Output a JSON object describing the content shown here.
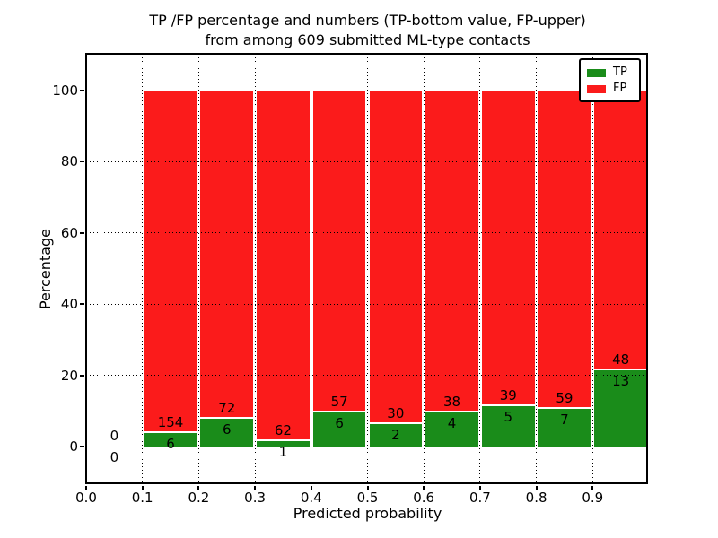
{
  "chart_data": {
    "type": "bar",
    "stacked": true,
    "normalized_to_pct": 100,
    "title_line1": "TP /FP percentage and numbers (TP-bottom value, FP-upper)",
    "title_line2": "from among 609 submitted ML-type contacts",
    "xlabel": "Predicted probability",
    "ylabel": "Percentage",
    "x_tick_labels": [
      "0.0",
      "0.1",
      "0.2",
      "0.3",
      "0.4",
      "0.5",
      "0.6",
      "0.7",
      "0.8",
      "0.9"
    ],
    "x_tick_values": [
      0.0,
      0.1,
      0.2,
      0.3,
      0.4,
      0.5,
      0.6,
      0.7,
      0.8,
      0.9
    ],
    "y_tick_labels": [
      "0",
      "20",
      "40",
      "60",
      "80",
      "100"
    ],
    "y_tick_values": [
      0,
      20,
      40,
      60,
      80,
      100
    ],
    "xlim": [
      0.0,
      1.0
    ],
    "ylim": [
      -10.6,
      110
    ],
    "bin_width": 0.1,
    "grid_style": "dotted",
    "legend_position": "upper right",
    "bins_x_start": [
      0.0,
      0.1,
      0.2,
      0.3,
      0.4,
      0.5,
      0.6,
      0.7,
      0.8,
      0.9
    ],
    "series": [
      {
        "name": "TP",
        "color": "#1a8c1a",
        "counts": [
          0,
          6,
          6,
          1,
          6,
          2,
          4,
          5,
          7,
          13
        ]
      },
      {
        "name": "FP",
        "color": "#fb1b1b",
        "counts": [
          0,
          154,
          72,
          62,
          57,
          30,
          38,
          39,
          59,
          48
        ]
      }
    ],
    "tp_pct_per_bin": [
      0,
      3.75,
      7.69,
      1.59,
      9.52,
      6.25,
      9.52,
      11.36,
      10.61,
      21.31
    ],
    "fp_pct_per_bin": [
      0,
      96.25,
      92.31,
      98.41,
      90.48,
      93.75,
      90.48,
      88.64,
      89.39,
      78.69
    ]
  },
  "colors": {
    "background": "#ffffff",
    "frame": "#000000",
    "grid": "#000000",
    "text": "#000000",
    "tp": "#1a8c1a",
    "fp": "#fb1b1b",
    "segment_separator": "#ffffff"
  }
}
